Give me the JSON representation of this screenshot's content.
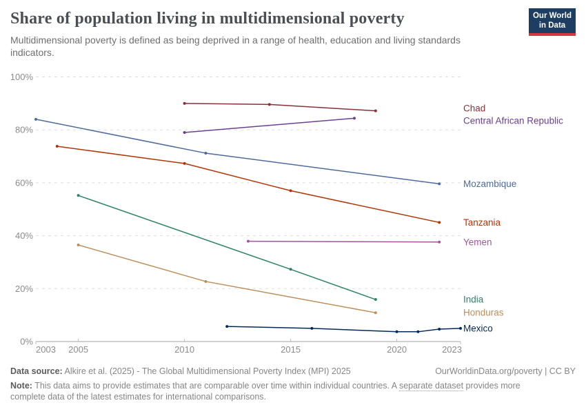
{
  "header": {
    "title": "Share of population living in multidimensional poverty",
    "subtitle": "Multidimensional poverty is defined as being deprived in a range of health, education and living standards indicators.",
    "logo_line1": "Our World",
    "logo_line2": "in Data",
    "logo_bg_color": "#1d3d63",
    "logo_bar_color": "#d7373e"
  },
  "chart_data": {
    "type": "line",
    "title": "Share of population living in multidimensional poverty",
    "xlabel": "",
    "ylabel": "",
    "xlim": [
      2003,
      2023
    ],
    "ylim": [
      0,
      100
    ],
    "grid": "horizontal-dashed",
    "legend_position": "right-inline-labels",
    "x_tick_values": [
      2003,
      2005,
      2010,
      2015,
      2020,
      2023
    ],
    "x_tick_labels": [
      "2003",
      "2005",
      "2010",
      "2015",
      "2020",
      "2023"
    ],
    "y_tick_values": [
      0,
      20,
      40,
      60,
      80,
      100
    ],
    "y_tick_labels": [
      "0%",
      "20%",
      "40%",
      "60%",
      "80%",
      "100%"
    ],
    "series": [
      {
        "name": "Chad",
        "color": "#883039",
        "points": [
          [
            2010,
            90.0
          ],
          [
            2014,
            89.6
          ],
          [
            2019,
            87.2
          ]
        ]
      },
      {
        "name": "Central African Republic",
        "color": "#6D3E91",
        "points": [
          [
            2010,
            79.0
          ],
          [
            2018,
            84.4
          ]
        ]
      },
      {
        "name": "Mozambique",
        "color": "#4C6A9C",
        "points": [
          [
            2003,
            84.0
          ],
          [
            2011,
            71.2
          ],
          [
            2022,
            59.6
          ]
        ]
      },
      {
        "name": "Tanzania",
        "color": "#B13507",
        "points": [
          [
            2004,
            73.8
          ],
          [
            2010,
            67.3
          ],
          [
            2015,
            57.0
          ],
          [
            2022,
            45.0
          ]
        ]
      },
      {
        "name": "Yemen",
        "color": "#A2559C",
        "points": [
          [
            2013,
            37.9
          ],
          [
            2022,
            37.6
          ]
        ]
      },
      {
        "name": "India",
        "color": "#2C8465",
        "points": [
          [
            2005,
            55.2
          ],
          [
            2015,
            27.3
          ],
          [
            2019,
            15.9
          ]
        ]
      },
      {
        "name": "Honduras",
        "color": "#BC8E5A",
        "points": [
          [
            2005,
            36.5
          ],
          [
            2011,
            22.7
          ],
          [
            2019,
            10.9
          ]
        ]
      },
      {
        "name": "Mexico",
        "color": "#00295B",
        "points": [
          [
            2012,
            5.7
          ],
          [
            2016,
            5.0
          ],
          [
            2020,
            3.7
          ],
          [
            2021,
            3.7
          ],
          [
            2022,
            4.7
          ],
          [
            2023,
            5.0
          ]
        ]
      }
    ]
  },
  "footer": {
    "datasource_label": "Data source:",
    "datasource_text": " Alkire et al. (2025) - The Global Multidimensional Poverty Index (MPI) 2025",
    "rights": "OurWorldinData.org/poverty | CC BY",
    "note_label": "Note:",
    "note_before_link": " This data aims to provide estimates that are comparable over time within individual countries. A ",
    "note_link": "separate dataset",
    "note_after_link": " provides more complete data of the latest estimates for international comparisons."
  }
}
